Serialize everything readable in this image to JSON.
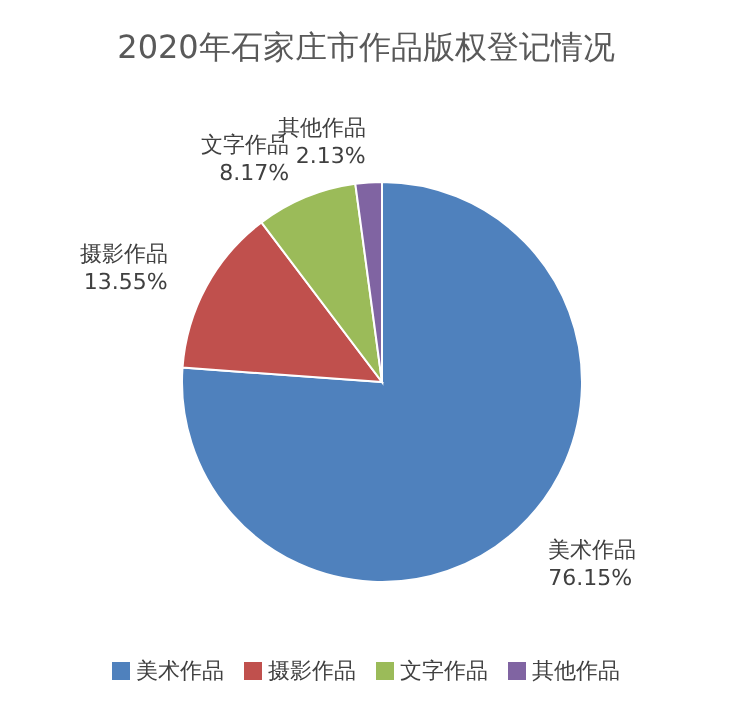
{
  "chart_data": {
    "type": "pie",
    "title": "2020年石家庄市作品版权登记情况",
    "categories": [
      "美术作品",
      "摄影作品",
      "文字作品",
      "其他作品"
    ],
    "values": [
      76.15,
      13.55,
      8.17,
      2.13
    ],
    "colors": [
      "#4f81bd",
      "#c0504d",
      "#9bbb59",
      "#8064a2"
    ],
    "value_labels": [
      "76.15%",
      "13.55%",
      "8.17%",
      "2.13%"
    ],
    "legend": "bottom"
  }
}
